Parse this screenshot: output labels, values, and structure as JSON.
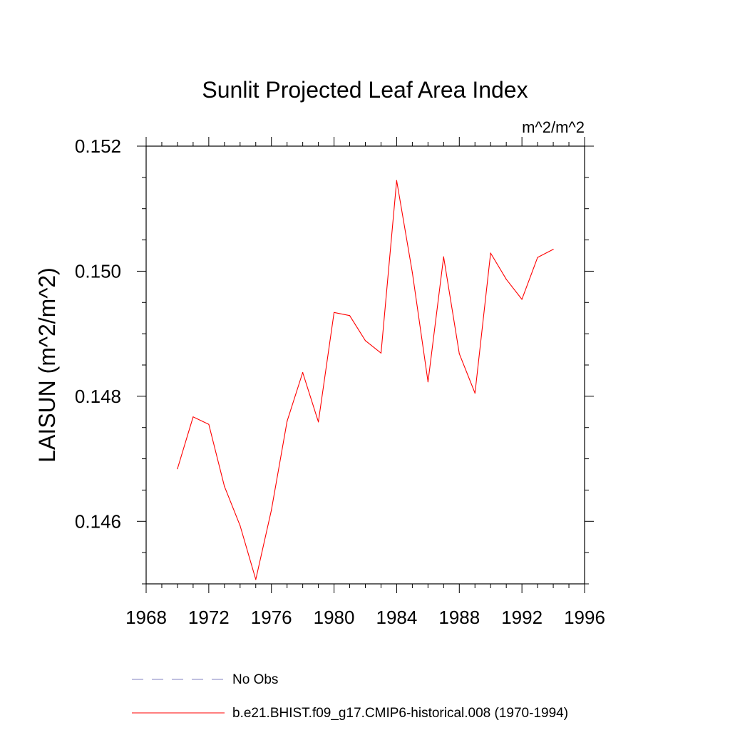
{
  "chart_data": {
    "type": "line",
    "title": "Sunlit Projected Leaf Area Index",
    "units": "m^2/m^2",
    "ylabel": "LAISUN  (m^2/m^2)",
    "xlabel": "",
    "xlim": [
      1968,
      1996
    ],
    "ylim": [
      0.145,
      0.152
    ],
    "x_ticks": [
      "1968",
      "1972",
      "1976",
      "1980",
      "1984",
      "1988",
      "1992",
      "1996"
    ],
    "y_ticks": [
      "0.146",
      "0.148",
      "0.150",
      "0.152"
    ],
    "x": [
      1970,
      1971,
      1972,
      1973,
      1974,
      1975,
      1976,
      1977,
      1978,
      1979,
      1980,
      1981,
      1982,
      1983,
      1984,
      1985,
      1986,
      1987,
      1988,
      1989,
      1990,
      1991,
      1992,
      1993,
      1994
    ],
    "series": [
      {
        "name": "b.e21.BHIST.f09_g17.CMIP6-historical.008 (1970-1994)",
        "color": "#ff0000",
        "style": "solid",
        "values": [
          0.14684,
          0.14767,
          0.14755,
          0.14656,
          0.14593,
          0.14507,
          0.14618,
          0.1476,
          0.14838,
          0.14759,
          0.14934,
          0.14929,
          0.14889,
          0.14869,
          0.15145,
          0.14998,
          0.14823,
          0.15023,
          0.14868,
          0.14805,
          0.15029,
          0.14987,
          0.14955,
          0.15022,
          0.15035
        ]
      }
    ],
    "legend": {
      "position": "bottom",
      "entries": [
        {
          "label": "No Obs",
          "color": "#8080c0",
          "style": "dashed"
        },
        {
          "label": "b.e21.BHIST.f09_g17.CMIP6-historical.008 (1970-1994)",
          "color": "#ff0000",
          "style": "solid"
        }
      ]
    },
    "grid": false
  }
}
